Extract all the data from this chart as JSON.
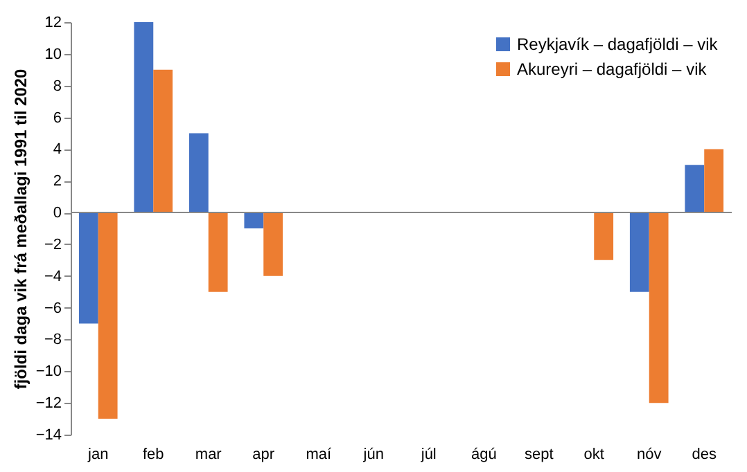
{
  "chart_data": {
    "type": "bar",
    "ylabel": "fjöldi daga vik frá meðallagi 1991 til 2020",
    "categories": [
      "jan",
      "feb",
      "mar",
      "apr",
      "maí",
      "jún",
      "júl",
      "ágú",
      "sept",
      "okt",
      "nóv",
      "des"
    ],
    "series": [
      {
        "name": "Reykjavík – dagafjöldi – vik",
        "color": "#4472c4",
        "values": [
          -7,
          12,
          5,
          -1,
          0,
          0,
          0,
          0,
          0,
          0,
          -5,
          3
        ]
      },
      {
        "name": "Akureyri – dagafjöldi – vik",
        "color": "#ed7d31",
        "values": [
          -13,
          9,
          -5,
          -4,
          0,
          0,
          0,
          0,
          0,
          -3,
          -12,
          4
        ]
      }
    ],
    "ylim": [
      -14,
      12
    ],
    "yticks": [
      -14,
      -12,
      -10,
      -8,
      -6,
      -4,
      -2,
      0,
      2,
      4,
      6,
      8,
      10,
      12
    ],
    "legend": "top right"
  }
}
